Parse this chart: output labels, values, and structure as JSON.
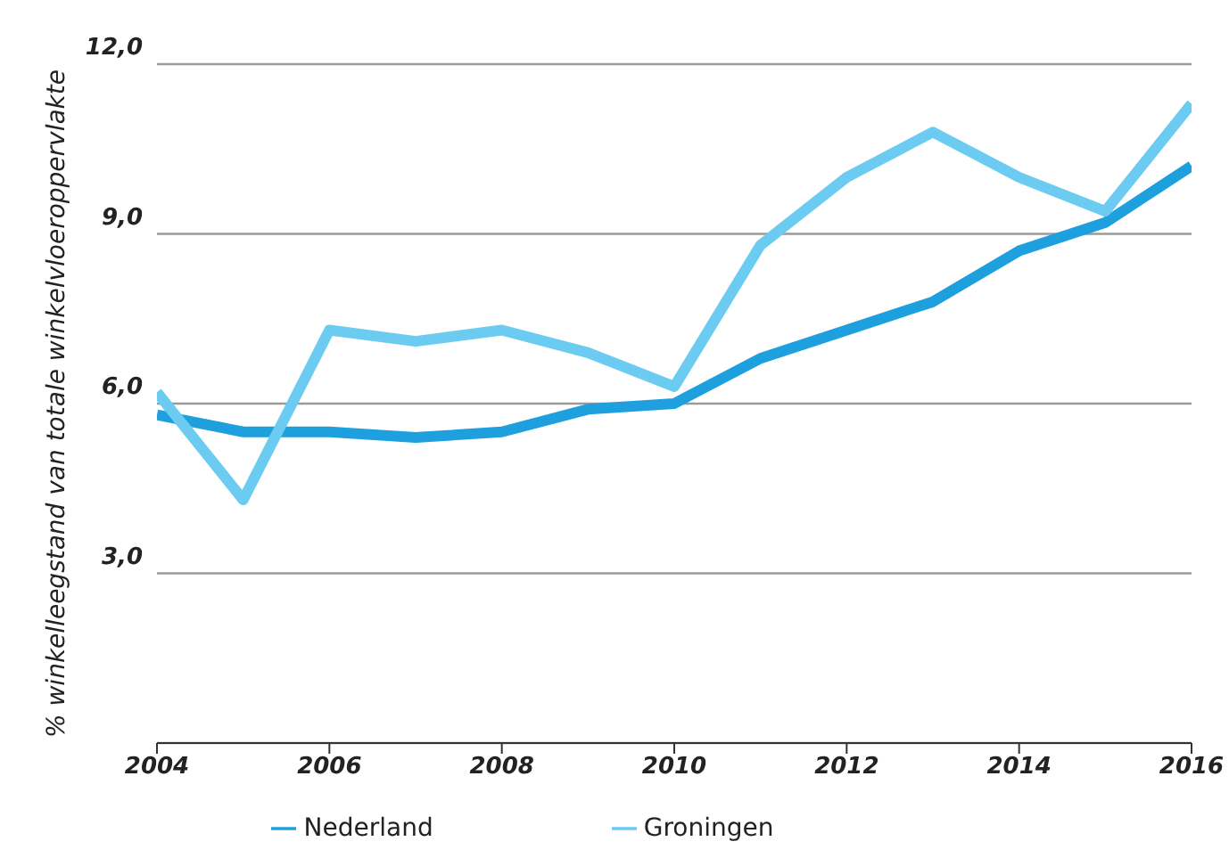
{
  "chart_data": {
    "type": "line",
    "ylabel": "% winkelleegstand van totale winkelvloeroppervlakte",
    "x": [
      2004,
      2005,
      2006,
      2007,
      2008,
      2009,
      2010,
      2011,
      2012,
      2013,
      2014,
      2015,
      2016
    ],
    "series": [
      {
        "name": "Nederland",
        "color": "#1ea0de",
        "values": [
          5.8,
          5.5,
          5.5,
          5.4,
          5.5,
          5.9,
          6.0,
          6.8,
          7.3,
          7.8,
          8.7,
          9.2,
          10.2
        ]
      },
      {
        "name": "Groningen",
        "color": "#6bcbf1",
        "values": [
          6.2,
          4.3,
          7.3,
          7.1,
          7.3,
          6.9,
          6.3,
          8.8,
          10.0,
          10.8,
          10.0,
          9.4,
          11.3
        ]
      }
    ],
    "xlim": [
      2004,
      2016
    ],
    "xticks": [
      2004,
      2006,
      2008,
      2010,
      2012,
      2014,
      2016
    ],
    "ylim": [
      0,
      12
    ],
    "yticks": [
      {
        "value": 3,
        "label": "3,0"
      },
      {
        "value": 6,
        "label": "6,0"
      },
      {
        "value": 9,
        "label": "9,0"
      },
      {
        "value": 12,
        "label": "12,0"
      }
    ],
    "grid": "y",
    "legend": "bottom",
    "marker": "none",
    "line_style": "solid"
  }
}
